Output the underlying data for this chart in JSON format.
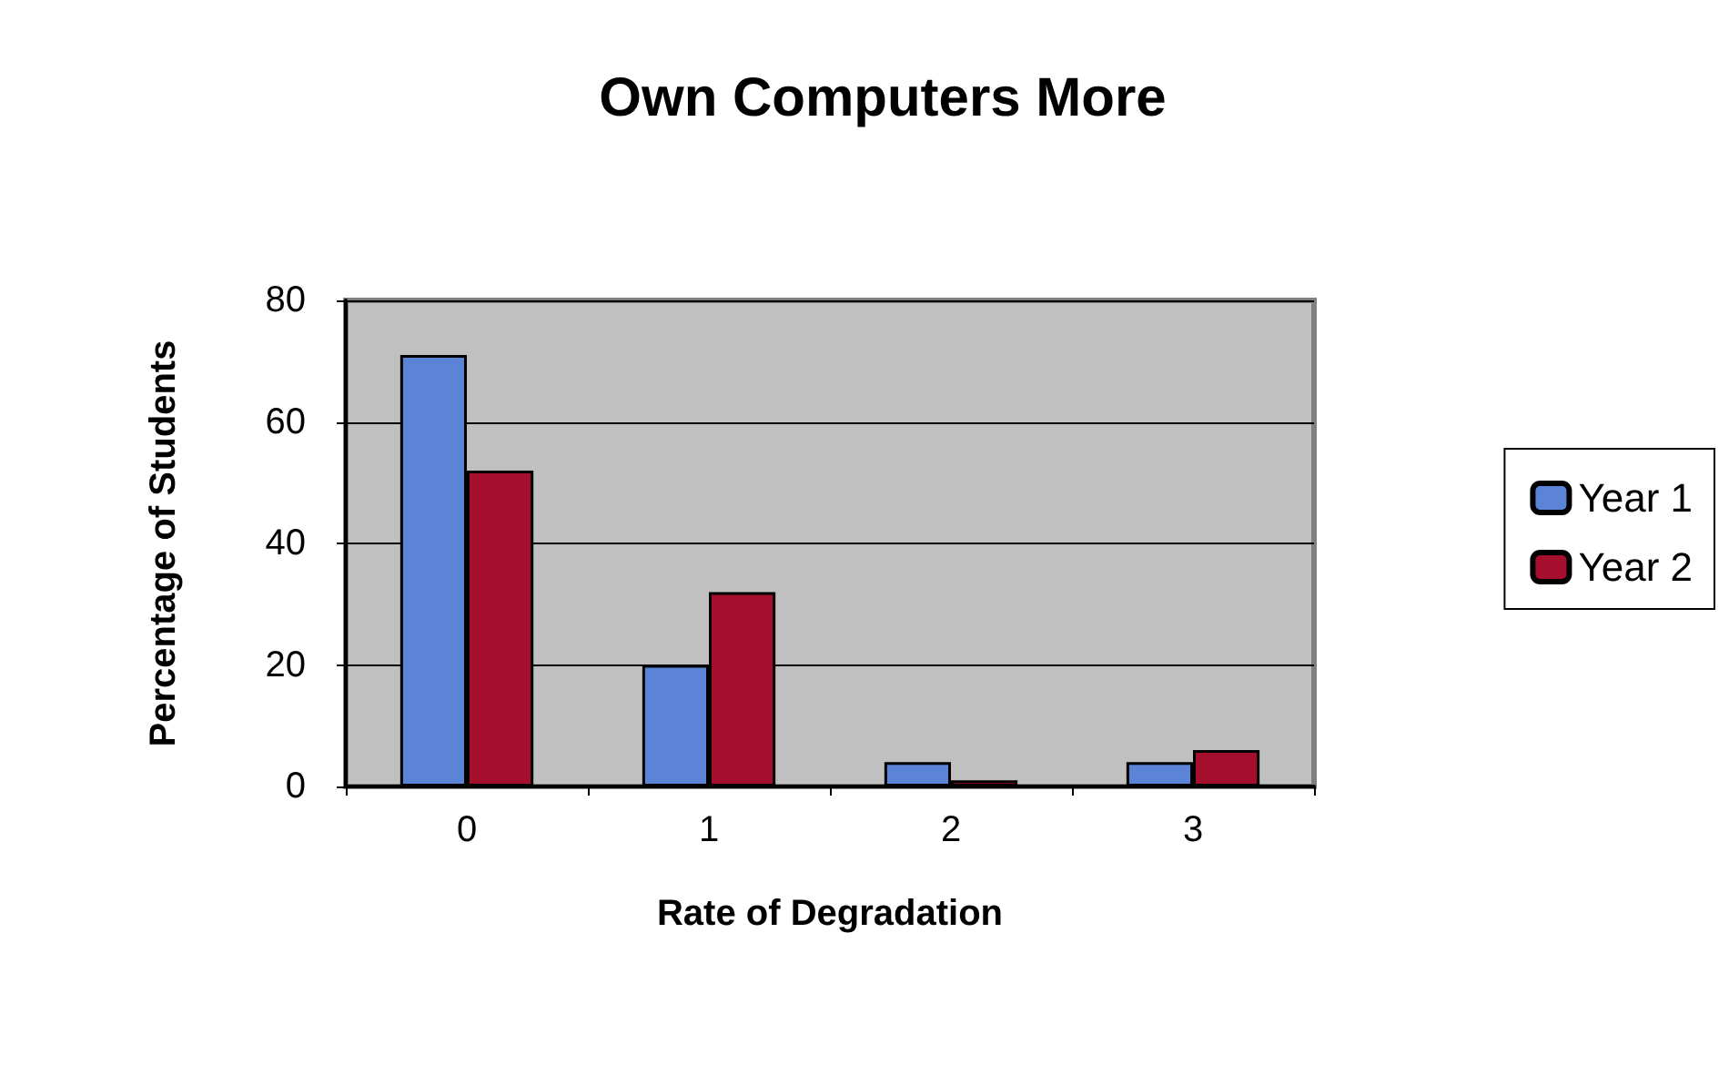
{
  "chart_data": {
    "type": "bar",
    "title": "Own Computers More",
    "xlabel": "Rate of Degradation",
    "ylabel": "Percentage of Students",
    "categories": [
      "0",
      "1",
      "2",
      "3"
    ],
    "series": [
      {
        "name": "Year 1",
        "color": "#5b84d6",
        "values": [
          71,
          20,
          4,
          4
        ]
      },
      {
        "name": "Year 2",
        "color": "#a50e2d",
        "values": [
          52,
          32,
          1,
          6
        ]
      }
    ],
    "ylim": [
      0,
      80
    ],
    "yticks": [
      0,
      20,
      40,
      60,
      80
    ],
    "grid": "y",
    "legend": "right"
  }
}
